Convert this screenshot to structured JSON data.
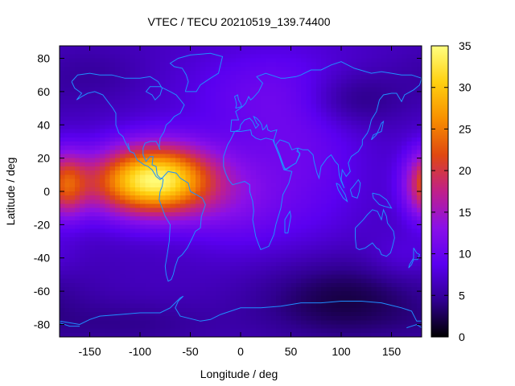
{
  "chart_data": {
    "type": "heatmap",
    "title": "VTEC / TECU 20210519_139.74400",
    "xlabel": "Longitude / deg",
    "ylabel": "Latitude / deg",
    "xlim": [
      -180,
      180
    ],
    "ylim": [
      -87.5,
      87.5
    ],
    "xticks": [
      -150,
      -100,
      -50,
      0,
      50,
      100,
      150
    ],
    "yticks": [
      -80,
      -60,
      -40,
      -20,
      0,
      20,
      40,
      60,
      80
    ],
    "colorbar": {
      "range": [
        0,
        35
      ],
      "ticks": [
        0,
        5,
        10,
        15,
        20,
        25,
        30,
        35
      ],
      "colormap": "gnuplot",
      "stops": [
        "#000000",
        "#300090",
        "#5a00f0",
        "#8a10e8",
        "#c0208a",
        "#e04810",
        "#f89000",
        "#ffd010",
        "#ffff80"
      ]
    },
    "grid": {
      "lon_step": 5,
      "lat_step": 2.5,
      "model_note": "approximate VTEC field read from image",
      "features": [
        {
          "name": "equatorial-anomaly-peak",
          "lon": -80,
          "lat": 7,
          "vtec": 32
        },
        {
          "name": "east-edge-anomaly",
          "lon": 175,
          "lat": 3,
          "vtec": 21
        },
        {
          "name": "south-pacific-trough",
          "lon": 100,
          "lat": -65,
          "vtec": 2
        },
        {
          "name": "siberian-trough",
          "lon": 110,
          "lat": 55,
          "vtec": 5
        }
      ]
    },
    "overlay": "coastlines",
    "coastline_color": "#1f8fff"
  }
}
